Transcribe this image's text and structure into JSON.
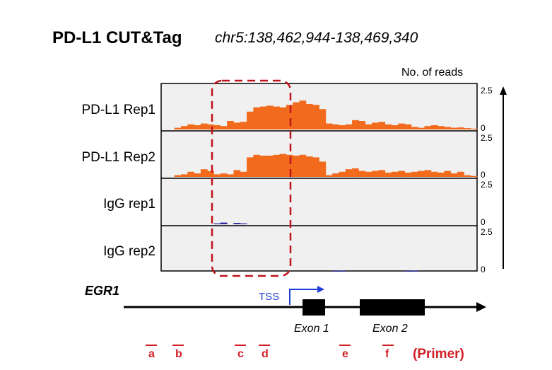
{
  "header": {
    "title": "PD-L1 CUT&Tag",
    "coordinates": "chr5:138,462,944-138,469,340"
  },
  "colors": {
    "signal": "#f26b1d",
    "igg": "#2a2a9e",
    "highlight": "#c0141c",
    "primer": "#d21f26",
    "tss": "#1f3fd6"
  },
  "chart_data": {
    "type": "area",
    "ylabel": "No. of reads",
    "ylim": [
      0,
      2.5
    ],
    "yticks": [
      "2.5",
      "0"
    ],
    "x_bins": 48,
    "tracks": [
      {
        "name": "PD-L1 Rep1",
        "values": [
          0,
          0,
          0.1,
          0.2,
          0.3,
          0.25,
          0.35,
          0.3,
          0.25,
          0.2,
          0.5,
          0.4,
          0.45,
          1.05,
          1.3,
          1.35,
          1.4,
          1.35,
          1.3,
          1.45,
          1.6,
          1.7,
          1.5,
          1.45,
          1.2,
          0.35,
          0.3,
          0.25,
          0.3,
          0.55,
          0.5,
          0.3,
          0.4,
          0.45,
          0.3,
          0.25,
          0.35,
          0.3,
          0.15,
          0.1,
          0.2,
          0.25,
          0.2,
          0.15,
          0.1,
          0.12,
          0.08,
          0.05
        ]
      },
      {
        "name": "PD-L1 Rep2",
        "values": [
          0,
          0,
          0.1,
          0.15,
          0.3,
          0.2,
          0.45,
          0.35,
          0.15,
          0.2,
          0.15,
          0.4,
          0.3,
          1.15,
          1.3,
          1.25,
          1.25,
          1.3,
          1.35,
          1.3,
          1.25,
          1.3,
          1.2,
          1.15,
          0.9,
          0.1,
          0.2,
          0.3,
          0.45,
          0.5,
          0.35,
          0.3,
          0.35,
          0.4,
          0.25,
          0.3,
          0.35,
          0.25,
          0.3,
          0.35,
          0.4,
          0.3,
          0.25,
          0.35,
          0.2,
          0.3,
          0.1,
          0.05
        ]
      },
      {
        "name": "IgG rep1",
        "values": [
          0,
          0,
          0,
          0,
          0,
          0,
          0,
          0,
          0.05,
          0.1,
          0,
          0.08,
          0.05,
          0,
          0,
          0,
          0,
          0,
          0,
          0,
          0,
          0,
          0,
          0,
          0,
          0,
          0,
          0,
          0,
          0,
          0,
          0,
          0,
          0,
          0,
          0,
          0,
          0,
          0,
          0,
          0,
          0,
          0,
          0,
          0,
          0,
          0,
          0
        ]
      },
      {
        "name": "IgG rep2",
        "values": [
          0,
          0,
          0,
          0,
          0,
          0,
          0,
          0,
          0,
          0,
          0,
          0,
          0,
          0,
          0,
          0,
          0,
          0,
          0,
          0,
          0,
          0,
          0,
          0,
          0,
          0,
          0.05,
          0.06,
          0,
          0,
          0,
          0,
          0,
          0,
          0,
          0,
          0,
          0.05,
          0.06,
          0,
          0,
          0,
          0,
          0,
          0,
          0,
          0,
          0
        ]
      }
    ]
  },
  "gene": {
    "name": "EGR1",
    "tss_label": "TSS",
    "exons": [
      "Exon 1",
      "Exon 2"
    ]
  },
  "primers": {
    "labels": [
      "a",
      "b",
      "c",
      "d",
      "e",
      "f"
    ],
    "legend": "(Primer)"
  }
}
